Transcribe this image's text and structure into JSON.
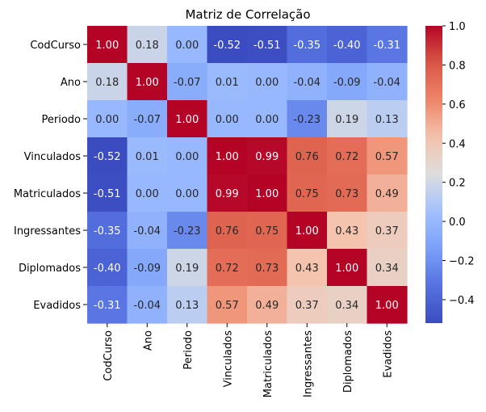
{
  "chart_data": {
    "type": "heatmap",
    "title": "Matriz de Correlação",
    "variables": [
      "CodCurso",
      "Ano",
      "Periodo",
      "Vinculados",
      "Matriculados",
      "Ingressantes",
      "Diplomados",
      "Evadidos"
    ],
    "values": [
      [
        1.0,
        0.18,
        -0.0,
        -0.52,
        -0.51,
        -0.35,
        -0.4,
        -0.31
      ],
      [
        0.18,
        1.0,
        -0.07,
        0.01,
        0.0,
        -0.04,
        -0.09,
        -0.04
      ],
      [
        -0.0,
        -0.07,
        1.0,
        -0.0,
        0.0,
        -0.23,
        0.19,
        0.13
      ],
      [
        -0.52,
        0.01,
        -0.0,
        1.0,
        0.99,
        0.76,
        0.72,
        0.57
      ],
      [
        -0.51,
        0.0,
        0.0,
        0.99,
        1.0,
        0.75,
        0.73,
        0.49
      ],
      [
        -0.35,
        -0.04,
        -0.23,
        0.76,
        0.75,
        1.0,
        0.43,
        0.37
      ],
      [
        -0.4,
        -0.09,
        0.19,
        0.72,
        0.73,
        0.43,
        1.0,
        0.34
      ],
      [
        -0.31,
        -0.04,
        0.13,
        0.57,
        0.49,
        0.37,
        0.34,
        1.0
      ]
    ],
    "colorbar": {
      "min": -0.52,
      "max": 1.0,
      "ticks": [
        1.0,
        0.8,
        0.6,
        0.4,
        0.2,
        0.0,
        -0.2,
        -0.4
      ],
      "tick_labels": [
        "1.0",
        "0.8",
        "0.6",
        "0.4",
        "0.2",
        "0.0",
        "−0.2",
        "−0.4"
      ]
    },
    "colormap": "coolwarm",
    "annotation_format": "0.00"
  }
}
